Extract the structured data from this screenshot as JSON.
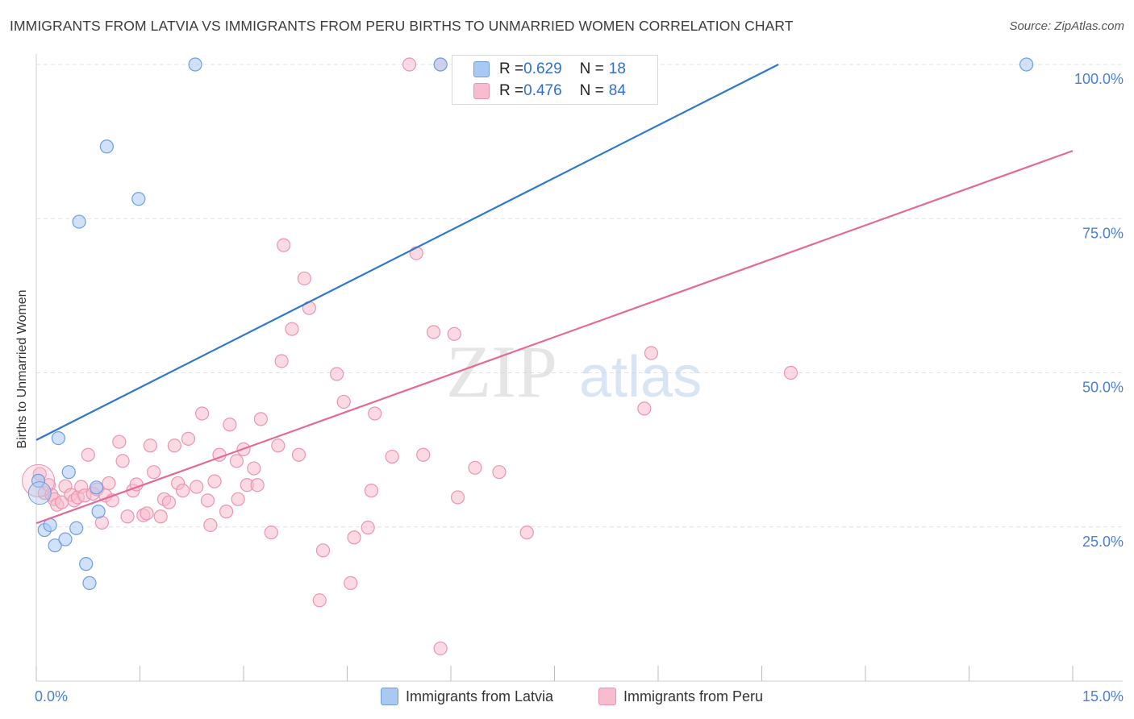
{
  "title": "IMMIGRANTS FROM LATVIA VS IMMIGRANTS FROM PERU BIRTHS TO UNMARRIED WOMEN CORRELATION CHART",
  "source": "Source: ZipAtlas.com",
  "watermark": {
    "zip": "ZIP",
    "atlas": "atlas"
  },
  "legend_top": {
    "rows": [
      {
        "r_label": "R = ",
        "r_value": "0.629",
        "n_label": "N = ",
        "n_value": "18"
      },
      {
        "r_label": "R = ",
        "r_value": "0.476",
        "n_label": "N = ",
        "n_value": "84"
      }
    ]
  },
  "legend_bottom": {
    "items": [
      {
        "label": "Immigrants from Latvia"
      },
      {
        "label": "Immigrants from Peru"
      }
    ]
  },
  "colors": {
    "latvia_fill": "#a9c8f2",
    "latvia_stroke": "#6d9fe0",
    "latvia_line": "#2e77d0",
    "peru_fill": "#f7bccd",
    "peru_stroke": "#ec94b0",
    "peru_line": "#e46a95",
    "tick_label": "#4a7fd4",
    "grid": "#e2e2e2"
  },
  "chart_data": {
    "type": "scatter",
    "title": "IMMIGRANTS FROM LATVIA VS IMMIGRANTS FROM PERU BIRTHS TO UNMARRIED WOMEN CORRELATION CHART",
    "xlabel": "",
    "ylabel": "Births to Unmarried Women",
    "xlim": [
      0,
      15
    ],
    "ylim": [
      0,
      100
    ],
    "x_tick_labels": [
      {
        "value": 0,
        "label": "0.0%"
      },
      {
        "value": 15,
        "label": "15.0%"
      }
    ],
    "y_tick_labels": [
      {
        "value": 100,
        "label": "100.0%"
      },
      {
        "value": 75,
        "label": "75.0%"
      },
      {
        "value": 50,
        "label": "50.0%"
      },
      {
        "value": 25,
        "label": "25.0%"
      }
    ],
    "series": [
      {
        "name": "Immigrants from Latvia",
        "r": 0.629,
        "n": 18,
        "trend": {
          "x": [
            0,
            10.74
          ],
          "y": [
            39.1,
            100
          ]
        },
        "points": [
          [
            0.03,
            32.5
          ],
          [
            0.12,
            24.5
          ],
          [
            0.2,
            25.3
          ],
          [
            0.27,
            22.0
          ],
          [
            0.32,
            39.4
          ],
          [
            0.42,
            23.0
          ],
          [
            0.47,
            33.9
          ],
          [
            0.58,
            24.8
          ],
          [
            0.72,
            19.0
          ],
          [
            0.77,
            15.9
          ],
          [
            0.87,
            31.4
          ],
          [
            0.9,
            27.5
          ],
          [
            0.62,
            74.5
          ],
          [
            1.02,
            86.7
          ],
          [
            1.48,
            78.2
          ],
          [
            2.3,
            100
          ],
          [
            5.85,
            100
          ],
          [
            14.33,
            100
          ]
        ]
      },
      {
        "name": "Immigrants from Peru",
        "r": 0.476,
        "n": 84,
        "trend": {
          "x": [
            0,
            15
          ],
          "y": [
            25.6,
            86.0
          ]
        },
        "points": [
          [
            0.05,
            33.6
          ],
          [
            0.12,
            30.5
          ],
          [
            0.18,
            31.8
          ],
          [
            0.22,
            30.2
          ],
          [
            0.26,
            29.5
          ],
          [
            0.3,
            28.6
          ],
          [
            0.37,
            29.0
          ],
          [
            0.42,
            31.6
          ],
          [
            0.5,
            30.2
          ],
          [
            0.55,
            29.3
          ],
          [
            0.6,
            29.8
          ],
          [
            0.65,
            31.5
          ],
          [
            0.7,
            30.1
          ],
          [
            0.75,
            36.7
          ],
          [
            0.82,
            30.4
          ],
          [
            0.88,
            31.1
          ],
          [
            0.95,
            25.7
          ],
          [
            1.0,
            30.1
          ],
          [
            1.05,
            32.1
          ],
          [
            1.1,
            29.3
          ],
          [
            1.2,
            38.8
          ],
          [
            1.25,
            35.7
          ],
          [
            1.32,
            26.7
          ],
          [
            1.4,
            30.9
          ],
          [
            1.45,
            31.9
          ],
          [
            1.55,
            26.9
          ],
          [
            1.6,
            27.2
          ],
          [
            1.65,
            38.2
          ],
          [
            1.7,
            33.9
          ],
          [
            1.8,
            26.7
          ],
          [
            1.85,
            29.5
          ],
          [
            1.92,
            29.0
          ],
          [
            2.0,
            38.2
          ],
          [
            2.05,
            32.1
          ],
          [
            2.12,
            30.9
          ],
          [
            2.2,
            39.3
          ],
          [
            2.32,
            31.5
          ],
          [
            2.4,
            43.4
          ],
          [
            2.48,
            29.3
          ],
          [
            2.52,
            25.3
          ],
          [
            2.58,
            32.4
          ],
          [
            2.65,
            36.7
          ],
          [
            2.75,
            27.5
          ],
          [
            2.8,
            41.6
          ],
          [
            2.9,
            35.7
          ],
          [
            2.92,
            29.5
          ],
          [
            3.0,
            37.6
          ],
          [
            3.05,
            31.8
          ],
          [
            3.15,
            34.5
          ],
          [
            3.2,
            31.8
          ],
          [
            3.25,
            42.5
          ],
          [
            3.4,
            24.1
          ],
          [
            3.5,
            38.2
          ],
          [
            3.55,
            51.9
          ],
          [
            3.58,
            70.7
          ],
          [
            3.7,
            57.1
          ],
          [
            3.8,
            36.7
          ],
          [
            3.88,
            65.3
          ],
          [
            3.95,
            60.5
          ],
          [
            4.1,
            13.1
          ],
          [
            4.15,
            21.2
          ],
          [
            4.35,
            49.8
          ],
          [
            4.45,
            45.3
          ],
          [
            4.55,
            15.9
          ],
          [
            4.6,
            23.3
          ],
          [
            4.8,
            24.9
          ],
          [
            4.85,
            30.9
          ],
          [
            4.9,
            43.4
          ],
          [
            5.15,
            36.4
          ],
          [
            5.4,
            100
          ],
          [
            5.5,
            69.4
          ],
          [
            5.6,
            36.7
          ],
          [
            5.75,
            56.6
          ],
          [
            5.85,
            5.3
          ],
          [
            6.05,
            56.3
          ],
          [
            6.1,
            29.8
          ],
          [
            6.35,
            34.6
          ],
          [
            6.7,
            33.9
          ],
          [
            7.0,
            100
          ],
          [
            7.1,
            24.1
          ],
          [
            8.8,
            44.2
          ],
          [
            8.9,
            53.2
          ],
          [
            10.92,
            50.0
          ],
          [
            5.85,
            100
          ]
        ]
      }
    ]
  }
}
